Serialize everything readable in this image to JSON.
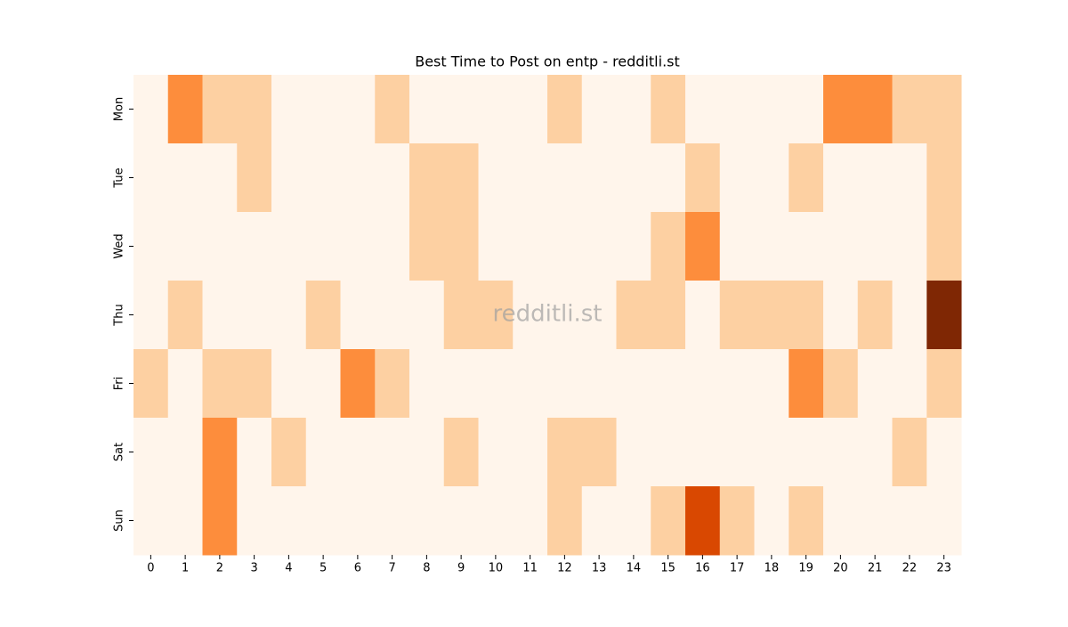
{
  "chart_data": {
    "type": "heatmap",
    "title": "Best Time to Post on entp - redditli.st",
    "watermark": "redditli.st",
    "x_categories": [
      0,
      1,
      2,
      3,
      4,
      5,
      6,
      7,
      8,
      9,
      10,
      11,
      12,
      13,
      14,
      15,
      16,
      17,
      18,
      19,
      20,
      21,
      22,
      23
    ],
    "y_categories": [
      "Mon",
      "Tue",
      "Wed",
      "Thu",
      "Fri",
      "Sat",
      "Sun"
    ],
    "values": [
      [
        0,
        2,
        1,
        1,
        0,
        0,
        0,
        1,
        0,
        0,
        0,
        0,
        1,
        0,
        0,
        1,
        0,
        0,
        0,
        0,
        2,
        2,
        1,
        1
      ],
      [
        0,
        0,
        0,
        1,
        0,
        0,
        0,
        0,
        1,
        1,
        0,
        0,
        0,
        0,
        0,
        0,
        1,
        0,
        0,
        1,
        0,
        0,
        0,
        1
      ],
      [
        0,
        0,
        0,
        0,
        0,
        0,
        0,
        0,
        1,
        1,
        0,
        0,
        0,
        0,
        0,
        1,
        2,
        0,
        0,
        0,
        0,
        0,
        0,
        1
      ],
      [
        0,
        1,
        0,
        0,
        0,
        1,
        0,
        0,
        0,
        1,
        1,
        0,
        0,
        0,
        1,
        1,
        0,
        1,
        1,
        1,
        0,
        1,
        0,
        4
      ],
      [
        1,
        0,
        1,
        1,
        0,
        0,
        2,
        1,
        0,
        0,
        0,
        0,
        0,
        0,
        0,
        0,
        0,
        0,
        0,
        2,
        1,
        0,
        0,
        1
      ],
      [
        0,
        0,
        2,
        0,
        1,
        0,
        0,
        0,
        0,
        1,
        0,
        0,
        1,
        1,
        0,
        0,
        0,
        0,
        0,
        0,
        0,
        0,
        1,
        0
      ],
      [
        0,
        0,
        2,
        0,
        0,
        0,
        0,
        0,
        0,
        0,
        0,
        0,
        1,
        0,
        0,
        1,
        3,
        1,
        0,
        1,
        0,
        0,
        0,
        0
      ]
    ],
    "vmin": 0,
    "vmax": 4,
    "colorscale": [
      "#fff5eb",
      "#fdd0a2",
      "#fd8d3c",
      "#d94801",
      "#7f2704"
    ]
  }
}
